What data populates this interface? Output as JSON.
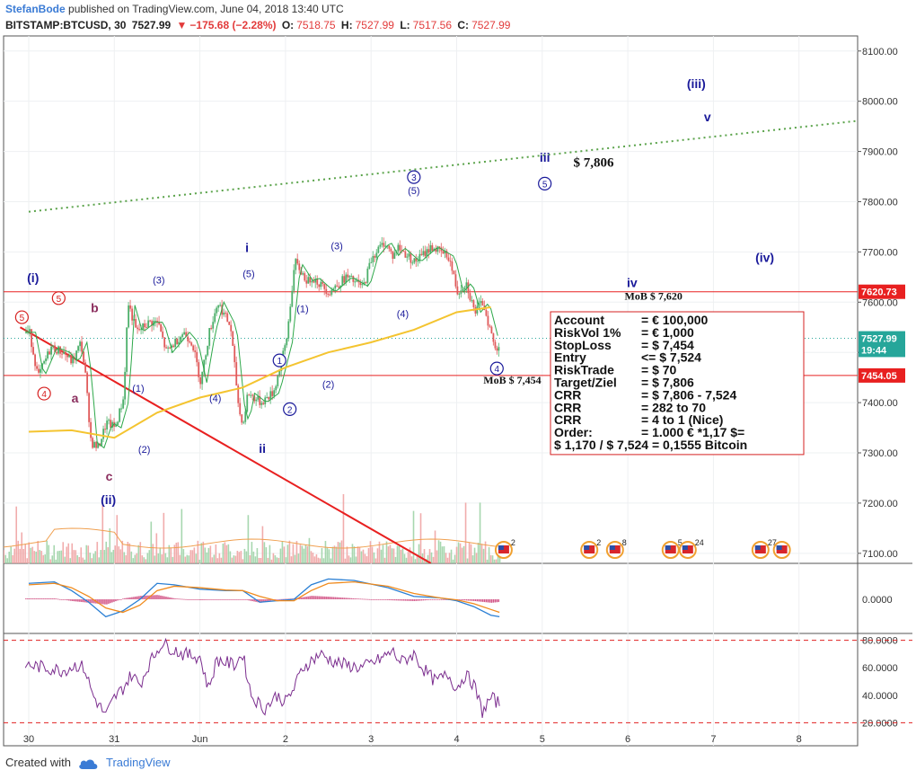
{
  "header": {
    "author": "StefanBode",
    "published": " published on TradingView.com, June 04, 2018 13:40 UTC",
    "symbol": "BITSTAMP:BTCUSD, 30",
    "last": "7527.99",
    "change_arrow": "▼",
    "change": "−175.68 (−2.28%)",
    "o_label": "O:",
    "o": "7518.75",
    "h_label": "H:",
    "h": "7527.99",
    "l_label": "L:",
    "l": "7517.56",
    "c_label": "C:",
    "c": "7527.99"
  },
  "footer": {
    "created_with": "Created with",
    "brand": "TradingView"
  },
  "colors": {
    "up": "#4caf6a",
    "down": "#e05a5a",
    "ma_yellow": "#f4c430",
    "ma_green": "#2ea84a",
    "trend_green": "#5aa34a",
    "red_line": "#e82020",
    "label_blue": "#1a1a9a",
    "label_purple": "#8b2e5e",
    "label_red": "#d62020",
    "macd_blue": "#2a7fd4",
    "macd_orange": "#f08a1c",
    "rsi": "#7b2d8e"
  },
  "chart_data": {
    "type": "line",
    "price_axis": {
      "ticks": [
        "8100.00",
        "8000.00",
        "7900.00",
        "7800.00",
        "7700.00",
        "7600.00",
        "7500.00",
        "7400.00",
        "7300.00",
        "7200.00",
        "7100.00"
      ],
      "ylim": [
        7080,
        8130
      ]
    },
    "price_tags": [
      {
        "text": "7620.73",
        "value": 7620.73,
        "color": "#e82020"
      },
      {
        "text": "7527.99",
        "value": 7527.99,
        "color": "#26a69a"
      },
      {
        "text": "19:44",
        "value": 7505,
        "color": "#26a69a"
      },
      {
        "text": "7454.05",
        "value": 7454.05,
        "color": "#e82020"
      }
    ],
    "x_axis": {
      "ticks": [
        "30",
        "31",
        "Jun",
        "2",
        "3",
        "4",
        "5",
        "6",
        "7",
        "8"
      ],
      "tick_days": [
        0,
        1,
        2,
        3,
        4,
        5,
        6,
        7,
        8,
        9
      ]
    },
    "series": [
      {
        "name": "BTCUSD",
        "kind": "close_path",
        "x": [
          0,
          0.1,
          0.25,
          0.4,
          0.5,
          0.6,
          0.65,
          0.72,
          0.8,
          0.9,
          1.0,
          1.1,
          1.15,
          1.25,
          1.4,
          1.5,
          1.6,
          1.8,
          1.9,
          2.0,
          2.1,
          2.2,
          2.35,
          2.45,
          2.5,
          2.55,
          2.7,
          2.85,
          3.0,
          3.1,
          3.25,
          3.3,
          3.5,
          3.7,
          3.9,
          4.0,
          4.15,
          4.25,
          4.3,
          4.5,
          4.7,
          4.9,
          5.0,
          5.1,
          5.2,
          5.3,
          5.45,
          5.5
        ],
        "y": [
          7540,
          7450,
          7510,
          7500,
          7480,
          7520,
          7460,
          7320,
          7310,
          7360,
          7350,
          7410,
          7600,
          7540,
          7560,
          7560,
          7500,
          7540,
          7520,
          7440,
          7540,
          7600,
          7550,
          7380,
          7360,
          7420,
          7400,
          7420,
          7520,
          7680,
          7640,
          7650,
          7620,
          7650,
          7630,
          7690,
          7720,
          7690,
          7710,
          7680,
          7710,
          7690,
          7620,
          7640,
          7580,
          7600,
          7500,
          7528
        ]
      },
      {
        "name": "MA-yellow",
        "kind": "ma",
        "x": [
          0,
          0.5,
          1.0,
          1.5,
          2.0,
          2.5,
          3.0,
          3.5,
          4.0,
          4.5,
          5.0,
          5.4
        ],
        "y": [
          7342,
          7345,
          7330,
          7380,
          7410,
          7430,
          7470,
          7500,
          7520,
          7545,
          7580,
          7590
        ]
      }
    ],
    "trend_green": {
      "from": [
        0,
        7780
      ],
      "to": [
        9.9,
        7965
      ]
    },
    "red_trend": {
      "from": [
        -0.1,
        7550
      ],
      "to": [
        4.7,
        7080
      ]
    },
    "hlines": [
      {
        "value": 7620.73,
        "color": "#e82020"
      },
      {
        "value": 7454.05,
        "color": "#e82020"
      }
    ],
    "annotations": [
      {
        "text": "(i)",
        "x": 0.05,
        "y": 7640,
        "color": "#1a1a9a",
        "bold": true
      },
      {
        "text": "(ii)",
        "x": 0.93,
        "y": 7198,
        "color": "#1a1a9a",
        "bold": true
      },
      {
        "text": "(iii)",
        "x": 7.8,
        "y": 8026,
        "color": "#1a1a9a",
        "bold": true
      },
      {
        "text": "(iv)",
        "x": 8.6,
        "y": 7680,
        "color": "#1a1a9a",
        "bold": true
      },
      {
        "text": "i",
        "x": 2.55,
        "y": 7700,
        "color": "#1a1a9a",
        "bold": true
      },
      {
        "text": "ii",
        "x": 2.73,
        "y": 7300,
        "color": "#1a1a9a",
        "bold": true
      },
      {
        "text": "iii",
        "x": 6.03,
        "y": 7880,
        "color": "#1a1a9a",
        "bold": true
      },
      {
        "text": "iv",
        "x": 7.05,
        "y": 7630,
        "color": "#1a1a9a",
        "bold": true
      },
      {
        "text": "v",
        "x": 7.93,
        "y": 7960,
        "color": "#1a1a9a",
        "bold": true
      },
      {
        "text": "a",
        "x": 0.54,
        "y": 7400,
        "color": "#8b2e5e",
        "bold": true
      },
      {
        "text": "b",
        "x": 0.77,
        "y": 7580,
        "color": "#8b2e5e",
        "bold": true
      },
      {
        "text": "c",
        "x": 0.94,
        "y": 7245,
        "color": "#8b2e5e",
        "bold": true
      },
      {
        "text": "(1)",
        "x": 1.28,
        "y": 7422,
        "color": "#1a1a9a"
      },
      {
        "text": "(2)",
        "x": 1.35,
        "y": 7300,
        "color": "#1a1a9a"
      },
      {
        "text": "(3)",
        "x": 1.52,
        "y": 7637,
        "color": "#1a1a9a"
      },
      {
        "text": "(4)",
        "x": 2.18,
        "y": 7402,
        "color": "#1a1a9a"
      },
      {
        "text": "(5)",
        "x": 2.57,
        "y": 7650,
        "color": "#1a1a9a"
      },
      {
        "text": "(1)",
        "x": 3.2,
        "y": 7580,
        "color": "#1a1a9a"
      },
      {
        "text": "(2)",
        "x": 3.5,
        "y": 7430,
        "color": "#1a1a9a"
      },
      {
        "text": "(3)",
        "x": 3.6,
        "y": 7705,
        "color": "#1a1a9a"
      },
      {
        "text": "(4)",
        "x": 4.37,
        "y": 7570,
        "color": "#1a1a9a"
      },
      {
        "text": "(5)",
        "x": 4.5,
        "y": 7815,
        "color": "#1a1a9a"
      },
      {
        "text": "$ 7,806",
        "x": 6.6,
        "y": 7870,
        "color": "#111111",
        "bold": true,
        "serif": true,
        "size": 15
      },
      {
        "text": "MoB $ 7,620",
        "x": 7.3,
        "y": 7605,
        "color": "#111111",
        "bold": true,
        "serif": true,
        "size": 12
      },
      {
        "text": "MoB $ 7,454",
        "x": 5.65,
        "y": 7438,
        "color": "#111111",
        "bold": true,
        "serif": true,
        "size": 12
      }
    ],
    "circles": [
      {
        "text": "5",
        "x": 0.35,
        "y": 7608,
        "color": "#d62020"
      },
      {
        "text": "4",
        "x": 0.18,
        "y": 7418,
        "color": "#d62020"
      },
      {
        "text": "5",
        "x": -0.08,
        "y": 7570,
        "color": "#d62020"
      },
      {
        "text": "1",
        "x": 2.93,
        "y": 7484,
        "color": "#1a1a9a"
      },
      {
        "text": "2",
        "x": 3.05,
        "y": 7387,
        "color": "#1a1a9a"
      },
      {
        "text": "3",
        "x": 4.5,
        "y": 7849,
        "color": "#1a1a9a"
      },
      {
        "text": "5",
        "x": 6.03,
        "y": 7836,
        "color": "#1a1a9a"
      },
      {
        "text": "4",
        "x": 5.47,
        "y": 7468,
        "color": "#1a1a9a"
      }
    ],
    "info_box": {
      "lines": [
        [
          "Account",
          "= € 100,000"
        ],
        [
          "RiskVol 1%",
          "= €     1,000"
        ],
        [
          "StopLoss",
          "= $     7,454"
        ],
        [
          "Entry",
          "<= $     7,524"
        ],
        [
          "RiskTrade",
          "= $         70"
        ],
        [
          "Target/Ziel",
          "= $    7,806"
        ],
        [
          "CRR",
          "= $  7,806 - 7,524"
        ],
        [
          "CRR",
          "= 282 to 70"
        ],
        [
          "CRR",
          "= 4 to 1 (Nice)"
        ],
        [
          "Order:",
          "= 1.000 € *1,17 $="
        ]
      ],
      "last": "$ 1,170 / $ 7,524 = 0,1555 Bitcoin"
    },
    "event_badges": [
      {
        "x": 5.55,
        "text": "2"
      },
      {
        "x": 6.55,
        "text": "2"
      },
      {
        "x": 6.85,
        "text": "8"
      },
      {
        "x": 7.5,
        "text": "5"
      },
      {
        "x": 7.7,
        "text": "24"
      },
      {
        "x": 8.55,
        "text": "27"
      },
      {
        "x": 8.8,
        "text": ""
      },
      {
        "x": 9.85,
        "text": ""
      }
    ],
    "macd": {
      "zero_label": "0.0000",
      "ylim": [
        -1,
        1
      ],
      "macd_line": {
        "x": [
          0,
          0.3,
          0.5,
          0.7,
          0.9,
          1.1,
          1.3,
          1.5,
          1.7,
          2.0,
          2.3,
          2.5,
          2.7,
          2.9,
          3.1,
          3.3,
          3.5,
          3.8,
          4.2,
          4.5,
          4.8,
          5.0,
          5.2,
          5.4,
          5.5
        ],
        "y": [
          0.55,
          0.6,
          0.3,
          -0.1,
          -0.6,
          -0.4,
          0.0,
          0.55,
          0.5,
          0.35,
          0.3,
          0.3,
          -0.1,
          -0.05,
          0.0,
          0.5,
          0.7,
          0.65,
          0.4,
          0.1,
          0.05,
          -0.05,
          -0.25,
          -0.55,
          -0.6
        ]
      },
      "signal_line": {
        "x": [
          0,
          0.3,
          0.5,
          0.7,
          0.9,
          1.1,
          1.3,
          1.5,
          1.7,
          2.0,
          2.3,
          2.5,
          2.7,
          2.9,
          3.1,
          3.3,
          3.5,
          3.8,
          4.2,
          4.5,
          4.8,
          5.0,
          5.2,
          5.4,
          5.5
        ],
        "y": [
          0.5,
          0.55,
          0.4,
          0.1,
          -0.3,
          -0.45,
          -0.2,
          0.3,
          0.45,
          0.4,
          0.32,
          0.3,
          0.1,
          -0.05,
          -0.05,
          0.3,
          0.55,
          0.6,
          0.45,
          0.2,
          0.05,
          -0.02,
          -0.15,
          -0.35,
          -0.45
        ]
      }
    },
    "rsi": {
      "ticks": [
        "80.0000",
        "60.0000",
        "40.0000",
        "20.0000"
      ],
      "tick_values": [
        80,
        60,
        40,
        20
      ],
      "ylim": [
        15,
        85
      ],
      "bands": [
        80,
        20
      ],
      "x": [
        0,
        0.2,
        0.4,
        0.55,
        0.65,
        0.75,
        0.85,
        0.9,
        1.0,
        1.1,
        1.2,
        1.3,
        1.4,
        1.55,
        1.8,
        2.0,
        2.1,
        2.2,
        2.4,
        2.5,
        2.6,
        2.75,
        2.9,
        3.0,
        3.1,
        3.2,
        3.4,
        3.55,
        3.7,
        3.9,
        4.1,
        4.25,
        4.35,
        4.5,
        4.6,
        4.75,
        4.9,
        5.0,
        5.1,
        5.2,
        5.3,
        5.4,
        5.5
      ],
      "y": [
        62,
        60,
        58,
        62,
        60,
        40,
        30,
        25,
        38,
        45,
        55,
        48,
        62,
        78,
        70,
        68,
        45,
        66,
        62,
        70,
        40,
        30,
        40,
        35,
        45,
        60,
        70,
        65,
        62,
        60,
        66,
        72,
        64,
        70,
        60,
        50,
        55,
        45,
        55,
        48,
        28,
        38,
        34
      ]
    }
  }
}
